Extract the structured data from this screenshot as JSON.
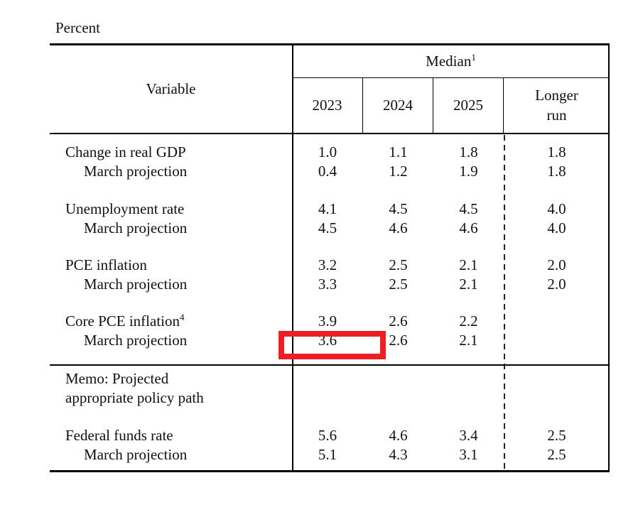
{
  "document": {
    "unit_label": "Percent",
    "highlight_color": "#ed1f24"
  },
  "table": {
    "header": {
      "variable": "Variable",
      "median": "Median",
      "median_sup": "1",
      "years": [
        "2023",
        "2024",
        "2025"
      ],
      "longer_run": "Longer run"
    },
    "rows": [
      {
        "label": "Change in real GDP",
        "values": [
          "1.0",
          "1.1",
          "1.8",
          "1.8"
        ]
      },
      {
        "label": "March projection",
        "values": [
          "0.4",
          "1.2",
          "1.9",
          "1.8"
        ]
      },
      {
        "label": "Unemployment rate",
        "values": [
          "4.1",
          "4.5",
          "4.5",
          "4.0"
        ]
      },
      {
        "label": "March projection",
        "values": [
          "4.5",
          "4.6",
          "4.6",
          "4.0"
        ]
      },
      {
        "label": "PCE inflation",
        "values": [
          "3.2",
          "2.5",
          "2.1",
          "2.0"
        ]
      },
      {
        "label": "March projection",
        "values": [
          "3.3",
          "2.5",
          "2.1",
          "2.0"
        ]
      },
      {
        "label": "Core PCE inflation",
        "label_sup": "4",
        "values": [
          "3.9",
          "2.6",
          "2.2",
          ""
        ]
      },
      {
        "label": "March projection",
        "values": [
          "3.6",
          "2.6",
          "2.1",
          ""
        ]
      }
    ],
    "memo": {
      "label": "Memo: Projected appropriate policy path"
    },
    "policy_rows": [
      {
        "label": "Federal funds rate",
        "values": [
          "5.6",
          "4.6",
          "3.4",
          "2.5"
        ]
      },
      {
        "label": "March projection",
        "values": [
          "5.1",
          "4.3",
          "3.1",
          "2.5"
        ]
      }
    ]
  }
}
